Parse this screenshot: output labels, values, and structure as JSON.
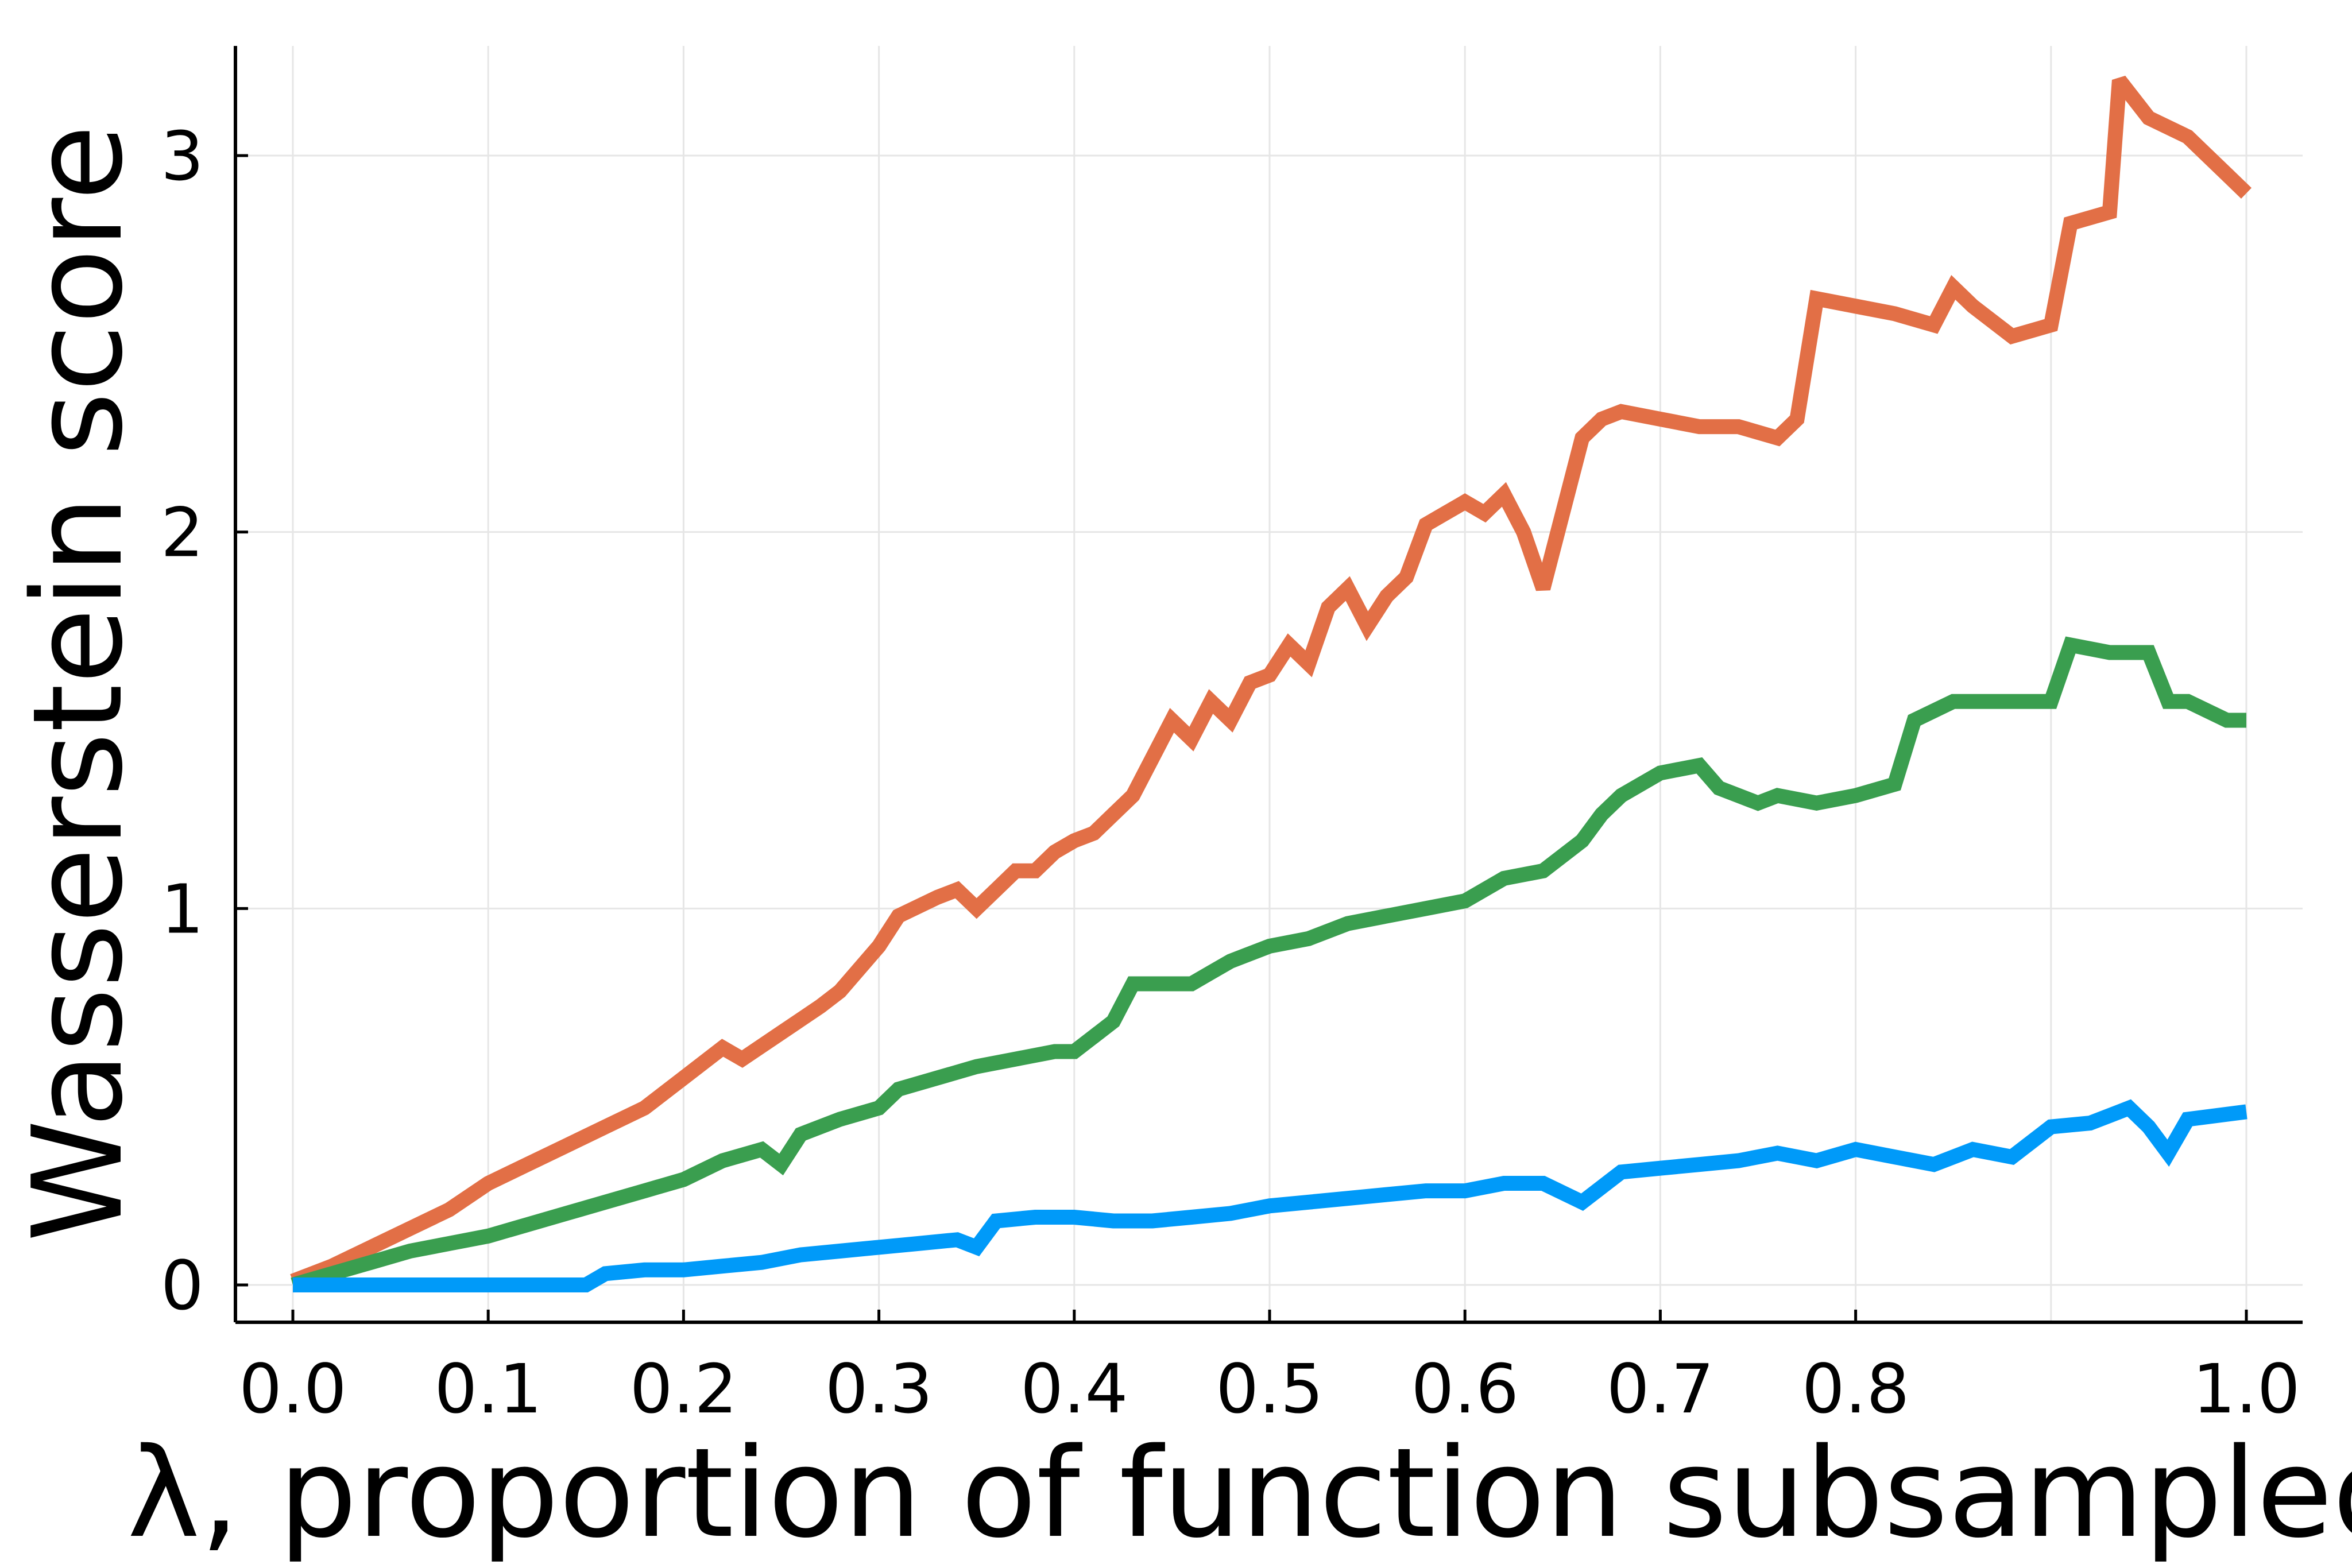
{
  "chart_data": {
    "type": "line",
    "title": "",
    "xlabel": "λ, proportion of function subsampled",
    "ylabel": "Wasserstein score",
    "xlim": [
      -0.03,
      1.03
    ],
    "ylim": [
      -0.1,
      3.3
    ],
    "grid": true,
    "legend": "none",
    "x_ticks": [
      {
        "value": 0.0,
        "label": "0.0"
      },
      {
        "value": 0.1,
        "label": "0.1"
      },
      {
        "value": 0.2,
        "label": "0.2"
      },
      {
        "value": 0.3,
        "label": "0.3"
      },
      {
        "value": 0.4,
        "label": "0.4"
      },
      {
        "value": 0.5,
        "label": "0.5"
      },
      {
        "value": 0.6,
        "label": "0.6"
      },
      {
        "value": 0.7,
        "label": "0.7"
      },
      {
        "value": 0.8,
        "label": "0.8"
      },
      {
        "value": 1.0,
        "label": "1.0"
      }
    ],
    "x_grid": [
      0.0,
      0.1,
      0.2,
      0.3,
      0.4,
      0.5,
      0.6,
      0.7,
      0.8,
      0.9,
      1.0
    ],
    "y_ticks": [
      {
        "value": 0,
        "label": "0"
      },
      {
        "value": 1,
        "label": "1"
      },
      {
        "value": 2,
        "label": "2"
      },
      {
        "value": 3,
        "label": "3"
      }
    ],
    "series": [
      {
        "color": "#e26f46",
        "points": [
          [
            0,
            0.01
          ],
          [
            0.02,
            0.05
          ],
          [
            0.04,
            0.1
          ],
          [
            0.06,
            0.15
          ],
          [
            0.08,
            0.2
          ],
          [
            0.1,
            0.27
          ],
          [
            0.12,
            0.32
          ],
          [
            0.14,
            0.37
          ],
          [
            0.16,
            0.42
          ],
          [
            0.18,
            0.47
          ],
          [
            0.2,
            0.55
          ],
          [
            0.22,
            0.63
          ],
          [
            0.23,
            0.6
          ],
          [
            0.25,
            0.67
          ],
          [
            0.27,
            0.74
          ],
          [
            0.28,
            0.78
          ],
          [
            0.3,
            0.9
          ],
          [
            0.31,
            0.98
          ],
          [
            0.33,
            1.03
          ],
          [
            0.34,
            1.05
          ],
          [
            0.35,
            1.0
          ],
          [
            0.36,
            1.05
          ],
          [
            0.37,
            1.1
          ],
          [
            0.38,
            1.1
          ],
          [
            0.39,
            1.15
          ],
          [
            0.4,
            1.18
          ],
          [
            0.41,
            1.2
          ],
          [
            0.42,
            1.25
          ],
          [
            0.43,
            1.3
          ],
          [
            0.44,
            1.4
          ],
          [
            0.45,
            1.5
          ],
          [
            0.46,
            1.45
          ],
          [
            0.47,
            1.55
          ],
          [
            0.48,
            1.5
          ],
          [
            0.49,
            1.6
          ],
          [
            0.5,
            1.62
          ],
          [
            0.51,
            1.7
          ],
          [
            0.52,
            1.65
          ],
          [
            0.53,
            1.8
          ],
          [
            0.54,
            1.85
          ],
          [
            0.55,
            1.75
          ],
          [
            0.56,
            1.83
          ],
          [
            0.57,
            1.88
          ],
          [
            0.58,
            2.02
          ],
          [
            0.59,
            2.05
          ],
          [
            0.6,
            2.08
          ],
          [
            0.61,
            2.05
          ],
          [
            0.62,
            2.1
          ],
          [
            0.63,
            2.0
          ],
          [
            0.64,
            1.85
          ],
          [
            0.65,
            2.05
          ],
          [
            0.66,
            2.25
          ],
          [
            0.67,
            2.3
          ],
          [
            0.68,
            2.32
          ],
          [
            0.7,
            2.3
          ],
          [
            0.72,
            2.28
          ],
          [
            0.74,
            2.28
          ],
          [
            0.76,
            2.25
          ],
          [
            0.77,
            2.3
          ],
          [
            0.78,
            2.62
          ],
          [
            0.8,
            2.6
          ],
          [
            0.82,
            2.58
          ],
          [
            0.84,
            2.55
          ],
          [
            0.85,
            2.65
          ],
          [
            0.86,
            2.6
          ],
          [
            0.88,
            2.52
          ],
          [
            0.9,
            2.55
          ],
          [
            0.91,
            2.82
          ],
          [
            0.93,
            2.85
          ],
          [
            0.935,
            3.2
          ],
          [
            0.95,
            3.1
          ],
          [
            0.97,
            3.05
          ],
          [
            0.99,
            2.95
          ],
          [
            1.0,
            2.9
          ]
        ]
      },
      {
        "color": "#3a9e4f",
        "points": [
          [
            0,
            0.0
          ],
          [
            0.02,
            0.03
          ],
          [
            0.04,
            0.06
          ],
          [
            0.06,
            0.09
          ],
          [
            0.08,
            0.11
          ],
          [
            0.1,
            0.13
          ],
          [
            0.12,
            0.16
          ],
          [
            0.14,
            0.19
          ],
          [
            0.16,
            0.22
          ],
          [
            0.18,
            0.25
          ],
          [
            0.2,
            0.28
          ],
          [
            0.22,
            0.33
          ],
          [
            0.24,
            0.36
          ],
          [
            0.25,
            0.32
          ],
          [
            0.26,
            0.4
          ],
          [
            0.28,
            0.44
          ],
          [
            0.3,
            0.47
          ],
          [
            0.31,
            0.52
          ],
          [
            0.33,
            0.55
          ],
          [
            0.35,
            0.58
          ],
          [
            0.37,
            0.6
          ],
          [
            0.39,
            0.62
          ],
          [
            0.4,
            0.62
          ],
          [
            0.41,
            0.66
          ],
          [
            0.42,
            0.7
          ],
          [
            0.43,
            0.8
          ],
          [
            0.45,
            0.8
          ],
          [
            0.46,
            0.8
          ],
          [
            0.47,
            0.83
          ],
          [
            0.48,
            0.86
          ],
          [
            0.5,
            0.9
          ],
          [
            0.52,
            0.92
          ],
          [
            0.54,
            0.96
          ],
          [
            0.56,
            0.98
          ],
          [
            0.58,
            1.0
          ],
          [
            0.6,
            1.02
          ],
          [
            0.62,
            1.08
          ],
          [
            0.64,
            1.1
          ],
          [
            0.66,
            1.18
          ],
          [
            0.67,
            1.25
          ],
          [
            0.68,
            1.3
          ],
          [
            0.7,
            1.36
          ],
          [
            0.72,
            1.38
          ],
          [
            0.73,
            1.32
          ],
          [
            0.75,
            1.28
          ],
          [
            0.76,
            1.3
          ],
          [
            0.78,
            1.28
          ],
          [
            0.8,
            1.3
          ],
          [
            0.82,
            1.33
          ],
          [
            0.83,
            1.5
          ],
          [
            0.85,
            1.55
          ],
          [
            0.87,
            1.55
          ],
          [
            0.9,
            1.55
          ],
          [
            0.91,
            1.7
          ],
          [
            0.93,
            1.68
          ],
          [
            0.95,
            1.68
          ],
          [
            0.96,
            1.55
          ],
          [
            0.97,
            1.55
          ],
          [
            0.99,
            1.5
          ],
          [
            1.0,
            1.5
          ]
        ]
      },
      {
        "color": "#009af9",
        "points": [
          [
            0,
            0.0
          ],
          [
            0.15,
            0.0
          ],
          [
            0.16,
            0.03
          ],
          [
            0.18,
            0.04
          ],
          [
            0.2,
            0.04
          ],
          [
            0.22,
            0.05
          ],
          [
            0.24,
            0.06
          ],
          [
            0.26,
            0.08
          ],
          [
            0.28,
            0.09
          ],
          [
            0.3,
            0.1
          ],
          [
            0.32,
            0.11
          ],
          [
            0.34,
            0.12
          ],
          [
            0.35,
            0.1
          ],
          [
            0.36,
            0.17
          ],
          [
            0.38,
            0.18
          ],
          [
            0.4,
            0.18
          ],
          [
            0.42,
            0.17
          ],
          [
            0.44,
            0.17
          ],
          [
            0.46,
            0.18
          ],
          [
            0.48,
            0.19
          ],
          [
            0.5,
            0.21
          ],
          [
            0.52,
            0.22
          ],
          [
            0.54,
            0.23
          ],
          [
            0.56,
            0.24
          ],
          [
            0.58,
            0.25
          ],
          [
            0.6,
            0.25
          ],
          [
            0.62,
            0.27
          ],
          [
            0.64,
            0.27
          ],
          [
            0.66,
            0.22
          ],
          [
            0.68,
            0.3
          ],
          [
            0.7,
            0.31
          ],
          [
            0.72,
            0.32
          ],
          [
            0.74,
            0.33
          ],
          [
            0.76,
            0.35
          ],
          [
            0.78,
            0.33
          ],
          [
            0.8,
            0.36
          ],
          [
            0.82,
            0.34
          ],
          [
            0.84,
            0.32
          ],
          [
            0.86,
            0.36
          ],
          [
            0.88,
            0.34
          ],
          [
            0.9,
            0.42
          ],
          [
            0.92,
            0.43
          ],
          [
            0.94,
            0.47
          ],
          [
            0.95,
            0.42
          ],
          [
            0.96,
            0.35
          ],
          [
            0.97,
            0.44
          ],
          [
            1.0,
            0.46
          ]
        ]
      }
    ]
  }
}
